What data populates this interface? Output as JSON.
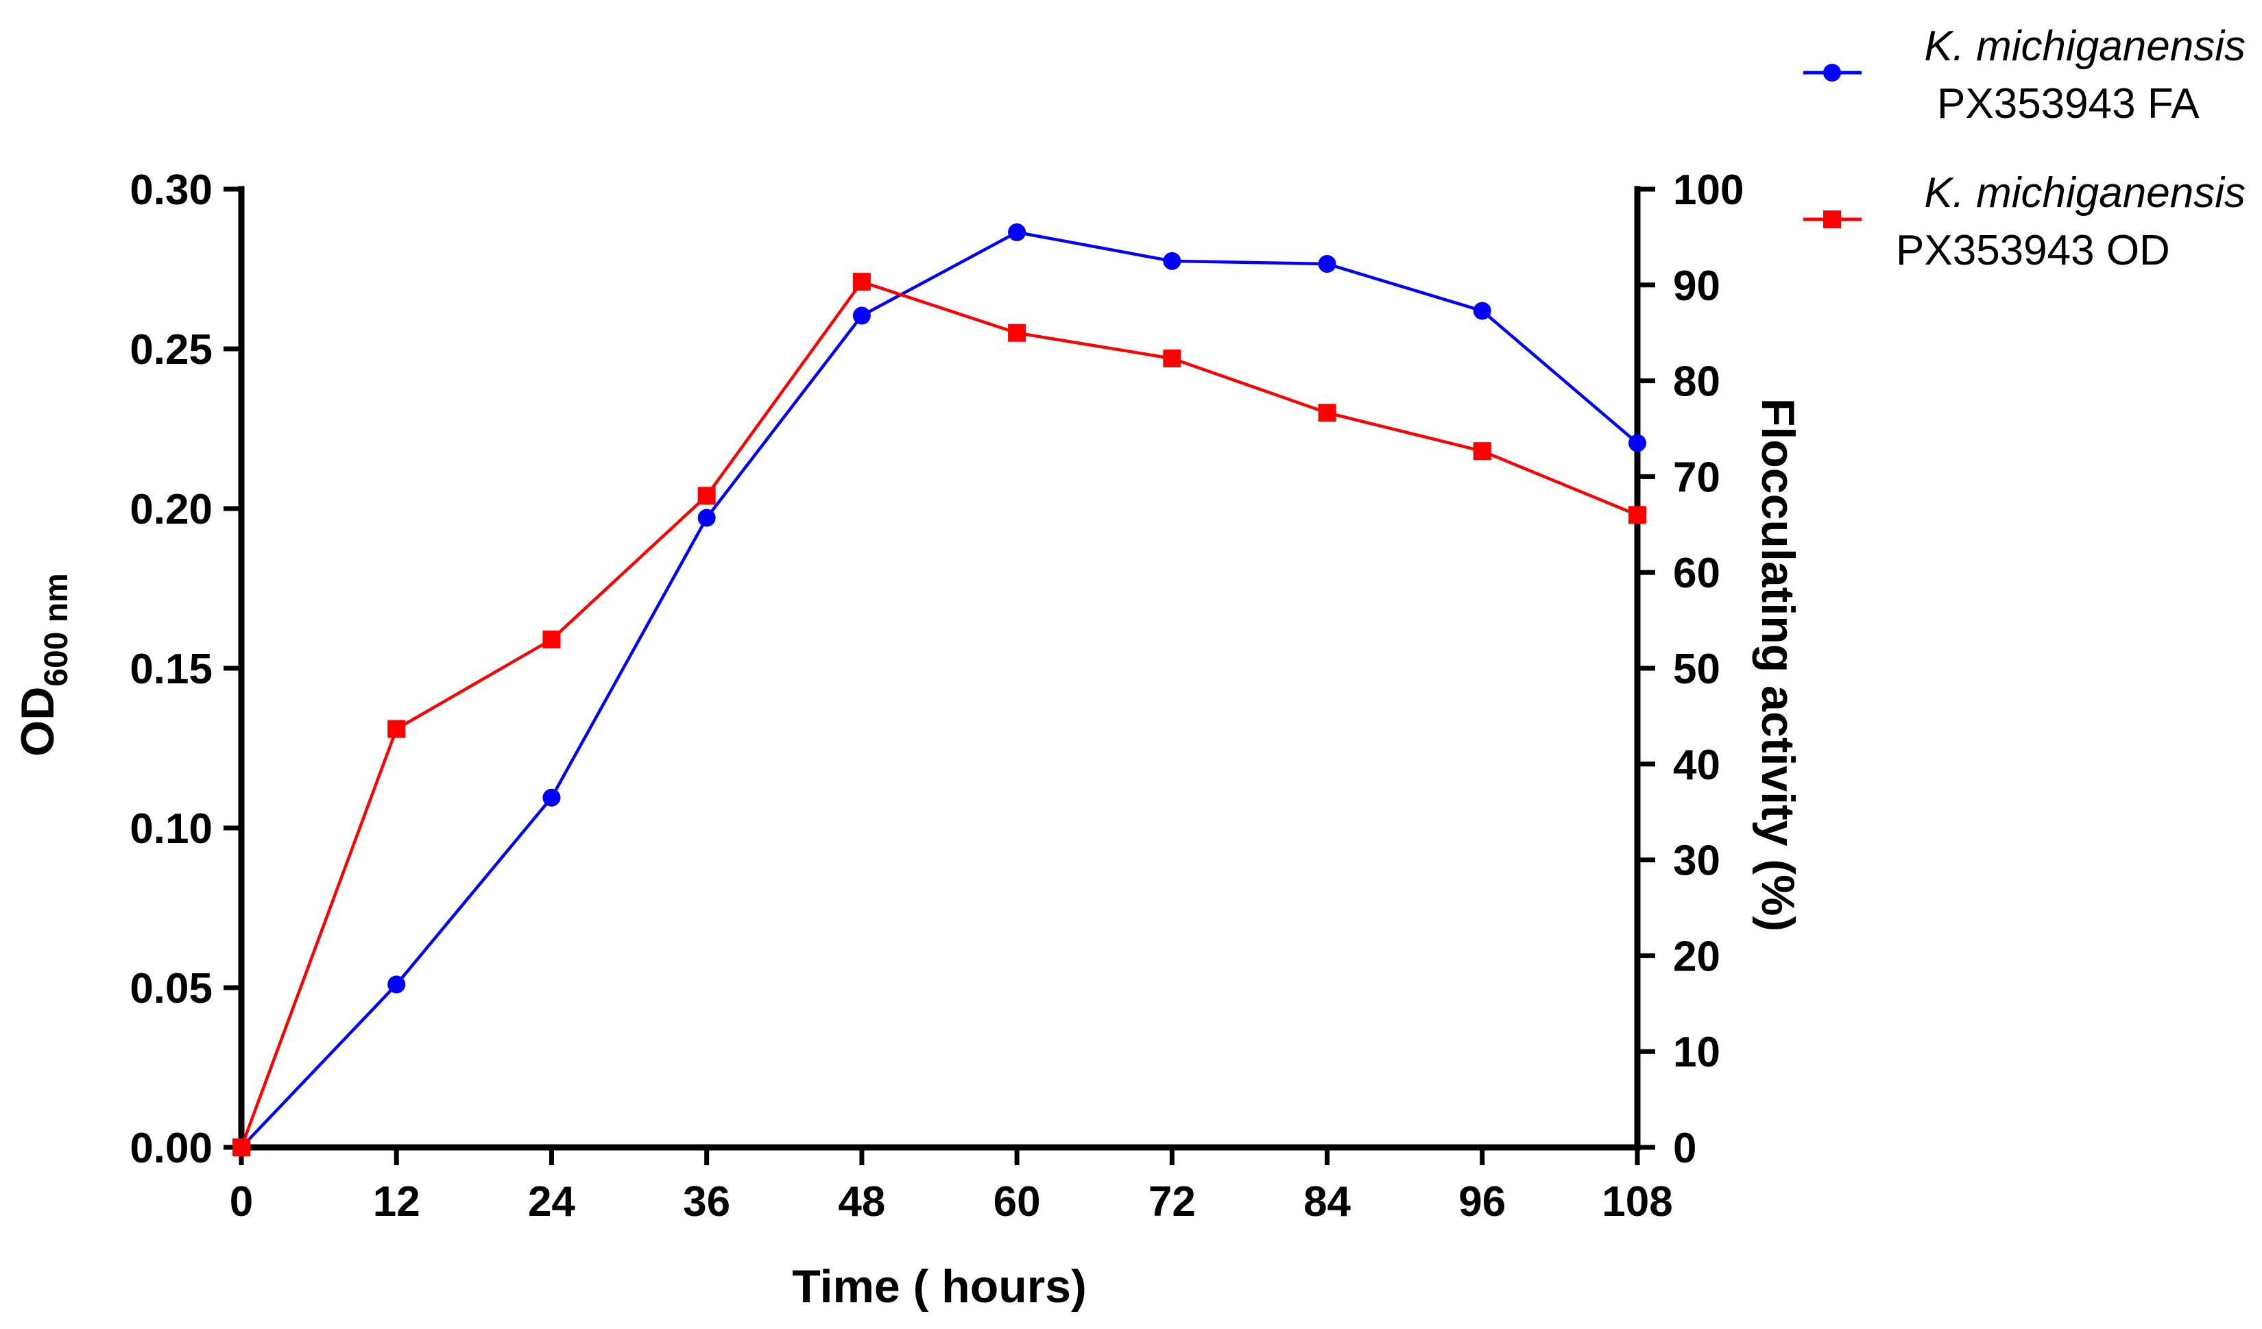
{
  "chart_data": {
    "type": "line",
    "dual_axis": true,
    "x": [
      0,
      12,
      24,
      36,
      48,
      60,
      72,
      84,
      96,
      108
    ],
    "xlabel": "Time  ( hours)",
    "xlim": [
      0,
      108
    ],
    "xticks": [
      "0",
      "12",
      "24",
      "36",
      "48",
      "60",
      "72",
      "84",
      "96",
      "108"
    ],
    "ylabel_left": {
      "main": "OD",
      "sub": "600 nm"
    },
    "ylim_left": [
      0,
      0.3
    ],
    "yticks_left": [
      "0.00",
      "0.05",
      "0.10",
      "0.15",
      "0.20",
      "0.25",
      "0.30"
    ],
    "ylabel_right": "Flocculating activity (%)",
    "ylim_right": [
      0,
      100
    ],
    "yticks_right": [
      "0",
      "10",
      "20",
      "30",
      "40",
      "50",
      "60",
      "70",
      "80",
      "90",
      "100"
    ],
    "grid": false,
    "legend_position": "top-right",
    "series": [
      {
        "name_italic": "K. michiganensis",
        "name_rest": "PX353943 FA",
        "axis": "right",
        "marker": "circle",
        "color": "#0000ff",
        "values": [
          0,
          17,
          36.5,
          65.7,
          86.8,
          95.5,
          92.5,
          92.2,
          87.3,
          73.5
        ]
      },
      {
        "name_italic": "K. michiganensis",
        "name_rest": "PX353943 OD",
        "axis": "left",
        "marker": "square",
        "color": "#ff0000",
        "values": [
          0,
          0.131,
          0.159,
          0.204,
          0.271,
          0.255,
          0.247,
          0.23,
          0.218,
          0.198
        ]
      }
    ]
  }
}
